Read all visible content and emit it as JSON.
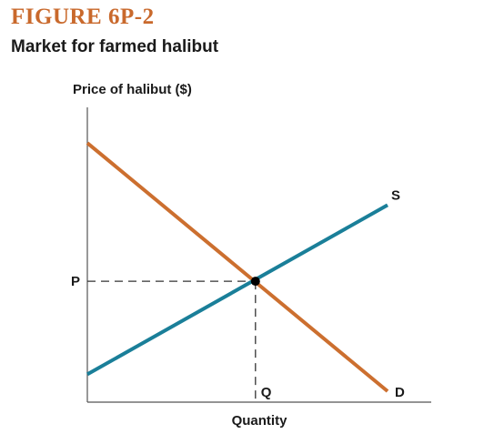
{
  "figure": {
    "label": "FIGURE 6P-2",
    "title": "Market for farmed halibut",
    "label_color": "#c9692c"
  },
  "chart_data": {
    "type": "line",
    "ylabel": "Price of halibut ($)",
    "xlabel": "Quantity",
    "xlim": [
      0,
      10
    ],
    "ylim": [
      0,
      10
    ],
    "grid": false,
    "series": [
      {
        "name": "D",
        "color": "#cc6f2f",
        "points": [
          [
            0,
            8.8
          ],
          [
            10,
            0
          ]
        ]
      },
      {
        "name": "S",
        "color": "#1a7f99",
        "points": [
          [
            0,
            0.6
          ],
          [
            10,
            6.6
          ]
        ]
      }
    ],
    "equilibrium": {
      "x": 5.6,
      "y": 3.9,
      "x_label": "Q",
      "y_label": "P"
    }
  }
}
